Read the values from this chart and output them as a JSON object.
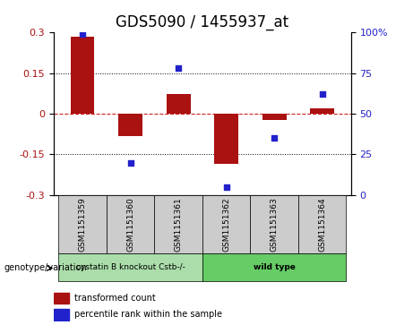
{
  "title": "GDS5090 / 1455937_at",
  "samples": [
    "GSM1151359",
    "GSM1151360",
    "GSM1151361",
    "GSM1151362",
    "GSM1151363",
    "GSM1151364"
  ],
  "red_values": [
    0.285,
    -0.082,
    0.072,
    -0.185,
    -0.022,
    0.02
  ],
  "blue_values_pct": [
    99,
    20,
    78,
    5,
    35,
    62
  ],
  "ylim_left": [
    -0.3,
    0.3
  ],
  "ylim_right": [
    0,
    100
  ],
  "yticks_left": [
    -0.3,
    -0.15,
    0,
    0.15,
    0.3
  ],
  "yticks_right": [
    0,
    25,
    50,
    75,
    100
  ],
  "ytick_left_labels": [
    "-0.3",
    "-0.15",
    "0",
    "0.15",
    "0.3"
  ],
  "ytick_right_labels": [
    "0",
    "25",
    "50",
    "75",
    "100%"
  ],
  "groups": [
    {
      "label": "cystatin B knockout Cstb-/-",
      "samples": [
        0,
        1,
        2
      ],
      "color": "#aaddaa"
    },
    {
      "label": "wild type",
      "samples": [
        3,
        4,
        5
      ],
      "color": "#66cc66"
    }
  ],
  "bar_color": "#aa1111",
  "dot_color": "#2222cc",
  "zero_line_color": "#cc2222",
  "grid_color": "#000000",
  "bar_width": 0.5,
  "legend_red_label": "transformed count",
  "legend_blue_label": "percentile rank within the sample",
  "genotype_label": "genotype/variation",
  "background_sample_box": "#cccccc",
  "title_fontsize": 12,
  "tick_fontsize": 8,
  "label_fontsize": 8
}
